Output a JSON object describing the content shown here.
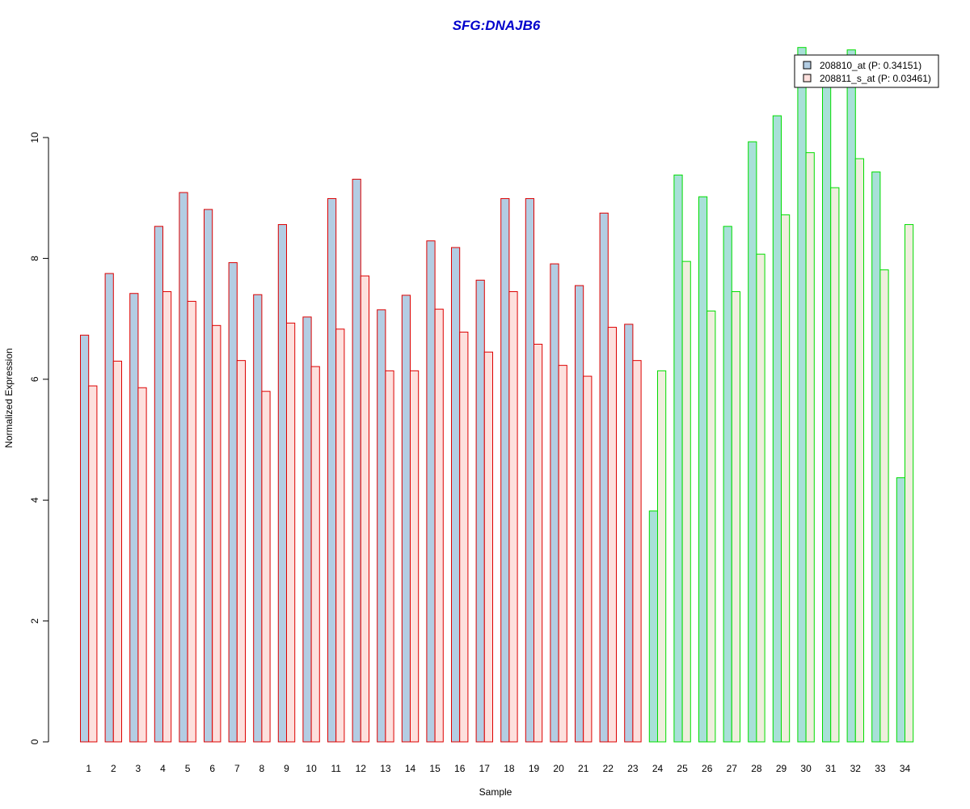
{
  "colors": {
    "title": "#0000cc",
    "probe1_fill": "#b3cde3",
    "probe2_fill": "#fde0dd",
    "group1_border": "#dd0000",
    "group2_border": "#00dd00",
    "probe1_fill_group2": "#a8e0d8",
    "probe2_fill_group2": "#efeedd"
  },
  "chart_data": {
    "type": "bar",
    "title": "SFG:DNAJB6",
    "xlabel": "Sample",
    "ylabel": "Normalized Expression",
    "ylim": [
      0,
      11.6
    ],
    "yticks": [
      0,
      2,
      4,
      6,
      8,
      10
    ],
    "categories": [
      "1",
      "2",
      "3",
      "4",
      "5",
      "6",
      "7",
      "8",
      "9",
      "10",
      "11",
      "12",
      "13",
      "14",
      "15",
      "16",
      "17",
      "18",
      "19",
      "20",
      "21",
      "22",
      "23",
      "24",
      "25",
      "26",
      "27",
      "28",
      "29",
      "30",
      "31",
      "32",
      "33",
      "34"
    ],
    "group2_start_index": 23,
    "series": [
      {
        "name": "208810_at (P: 0.34151)",
        "values": [
          6.73,
          7.75,
          7.42,
          8.53,
          9.09,
          8.81,
          7.93,
          7.4,
          8.56,
          7.03,
          8.99,
          9.31,
          7.15,
          7.39,
          8.29,
          8.18,
          7.64,
          8.99,
          8.99,
          7.91,
          7.55,
          8.75,
          6.91,
          3.82,
          9.38,
          9.02,
          8.53,
          9.93,
          10.36,
          11.49,
          10.95,
          11.45,
          9.43,
          4.37
        ]
      },
      {
        "name": "208811_s_at (P: 0.03461)",
        "values": [
          5.89,
          6.3,
          5.86,
          7.45,
          7.29,
          6.89,
          6.31,
          5.8,
          6.93,
          6.21,
          6.83,
          7.71,
          6.14,
          6.14,
          7.16,
          6.78,
          6.45,
          7.45,
          6.58,
          6.23,
          6.05,
          6.86,
          6.31,
          6.14,
          7.95,
          7.13,
          7.45,
          8.07,
          8.72,
          9.75,
          9.17,
          9.65,
          7.81,
          8.56
        ]
      }
    ],
    "legend_position": "top-right",
    "grid": false
  }
}
